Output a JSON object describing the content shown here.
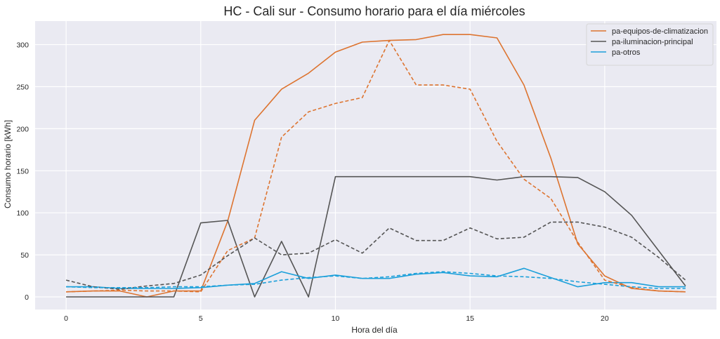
{
  "chart_data": {
    "type": "line",
    "title": "HC - Cali sur - Consumo horario para el día miércoles",
    "xlabel": "Hora del día",
    "ylabel": "Consumo horario [kWh]",
    "xlim": [
      -1.15,
      24.15
    ],
    "ylim": [
      -15,
      328
    ],
    "xticks": [
      0,
      5,
      10,
      15,
      20
    ],
    "yticks": [
      0,
      50,
      100,
      150,
      200,
      250,
      300
    ],
    "grid": true,
    "background": "#EAEAF2",
    "legend_position": "top-right",
    "x": [
      0,
      1,
      2,
      3,
      4,
      5,
      6,
      7,
      8,
      9,
      10,
      11,
      12,
      13,
      14,
      15,
      16,
      17,
      18,
      19,
      20,
      21,
      22,
      23
    ],
    "series": [
      {
        "name": "pa-equipos-de-climatizacion",
        "color": "#DD7430",
        "style": "solid",
        "values": [
          6,
          7,
          7,
          0,
          7,
          7,
          90,
          210,
          247,
          266,
          291,
          303,
          305,
          306,
          312,
          312,
          308,
          252,
          165,
          63,
          25,
          10,
          7,
          6
        ]
      },
      {
        "name": "pa-iluminacion-principal",
        "color": "#555555",
        "style": "solid",
        "values": [
          0,
          0,
          0,
          0,
          0,
          88,
          91,
          0,
          66,
          0,
          143,
          143,
          143,
          143,
          143,
          143,
          139,
          143,
          143,
          142,
          125,
          97,
          55,
          13
        ]
      },
      {
        "name": "pa-otros",
        "color": "#1CA0DA",
        "style": "solid",
        "values": [
          12,
          12,
          10,
          10,
          10,
          11,
          14,
          16,
          30,
          22,
          26,
          22,
          22,
          27,
          29,
          25,
          24,
          34,
          23,
          12,
          17,
          17,
          12,
          12
        ]
      },
      {
        "name": "",
        "color": "#DD7430",
        "style": "dashed",
        "values": [
          6,
          7,
          8,
          7,
          7,
          6,
          55,
          70,
          190,
          220,
          230,
          237,
          305,
          252,
          252,
          247,
          185,
          140,
          117,
          65,
          20,
          11,
          7,
          6
        ]
      },
      {
        "name": "",
        "color": "#555555",
        "style": "dashed",
        "values": [
          20,
          12,
          9,
          13,
          16,
          26,
          49,
          70,
          50,
          52,
          68,
          52,
          82,
          67,
          67,
          82,
          69,
          71,
          89,
          89,
          83,
          71,
          47,
          20
        ]
      },
      {
        "name": "",
        "color": "#1CA0DA",
        "style": "dashed",
        "values": [
          12,
          11,
          11,
          11,
          12,
          12,
          14,
          15,
          20,
          23,
          25,
          22,
          24,
          28,
          30,
          28,
          25,
          24,
          22,
          18,
          15,
          12,
          10,
          10
        ]
      }
    ]
  }
}
